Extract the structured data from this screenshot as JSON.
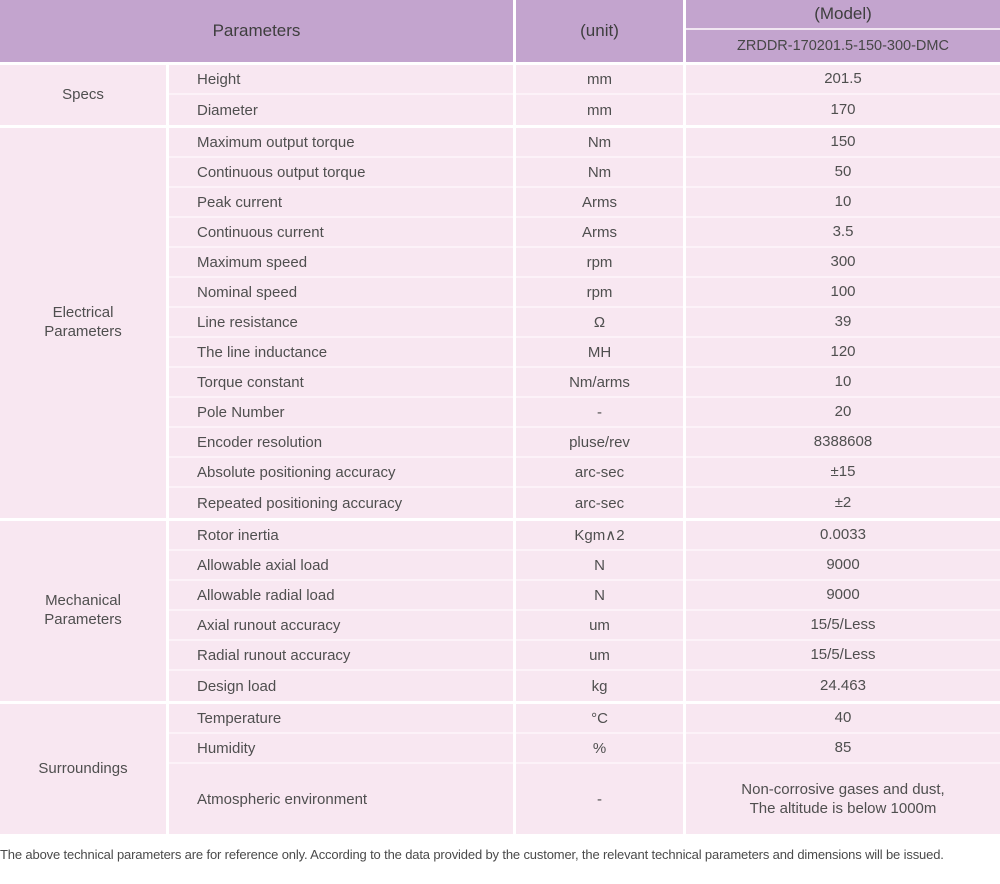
{
  "colors": {
    "header_bg": "#c3a4ce",
    "row_bg": "#f8e7f1",
    "divider": "#fcf2f8",
    "text": "#4f4f4f"
  },
  "header": {
    "parameters_label": "Parameters",
    "unit_label": "(unit)",
    "model_label": "(Model)",
    "model_value": "ZRDDR-170201.5-150-300-DMC"
  },
  "sections": [
    {
      "label": "Specs",
      "rows": [
        {
          "param": "Height",
          "unit": "mm",
          "value": "201.5"
        },
        {
          "param": "Diameter",
          "unit": "mm",
          "value": "170"
        }
      ]
    },
    {
      "label": "Electrical Parameters",
      "rows": [
        {
          "param": "Maximum output torque",
          "unit": "Nm",
          "value": "150"
        },
        {
          "param": "Continuous output torque",
          "unit": "Nm",
          "value": "50"
        },
        {
          "param": "Peak current",
          "unit": "Arms",
          "value": "10"
        },
        {
          "param": "Continuous current",
          "unit": "Arms",
          "value": "3.5"
        },
        {
          "param": "Maximum speed",
          "unit": "rpm",
          "value": "300"
        },
        {
          "param": "Nominal speed",
          "unit": "rpm",
          "value": "100"
        },
        {
          "param": "Line resistance",
          "unit": "Ω",
          "value": "39"
        },
        {
          "param": "The line inductance",
          "unit": "MH",
          "value": "120"
        },
        {
          "param": "Torque constant",
          "unit": "Nm/arms",
          "value": "10"
        },
        {
          "param": "Pole Number",
          "unit": "-",
          "value": "20"
        },
        {
          "param": "Encoder resolution",
          "unit": "pluse/rev",
          "value": "8388608"
        },
        {
          "param": "Absolute positioning accuracy",
          "unit": "arc-sec",
          "value": "±15"
        },
        {
          "param": "Repeated positioning accuracy",
          "unit": "arc-sec",
          "value": "±2"
        }
      ]
    },
    {
      "label": "Mechanical Parameters",
      "rows": [
        {
          "param": "Rotor inertia",
          "unit": "Kgm∧2",
          "value": "0.0033"
        },
        {
          "param": "Allowable axial load",
          "unit": "N",
          "value": "9000"
        },
        {
          "param": "Allowable radial load",
          "unit": "N",
          "value": "9000"
        },
        {
          "param": "Axial runout accuracy",
          "unit": "um",
          "value": "15/5/Less"
        },
        {
          "param": "Radial runout accuracy",
          "unit": "um",
          "value": "15/5/Less"
        },
        {
          "param": "Design load",
          "unit": "kg",
          "value": "24.463"
        }
      ]
    },
    {
      "label": "Surroundings",
      "rows": [
        {
          "param": "Temperature",
          "unit": "°C",
          "value": "40"
        },
        {
          "param": "Humidity",
          "unit": "%",
          "value": "85"
        },
        {
          "param": "Atmospheric environment",
          "unit": "-",
          "value": "Non-corrosive gases and dust,\nThe altitude is below 1000m",
          "tall": true
        }
      ]
    }
  ],
  "footer": {
    "note": "The above technical parameters are for reference only. According to the data provided by the customer, the relevant technical parameters and dimensions will be issued."
  }
}
